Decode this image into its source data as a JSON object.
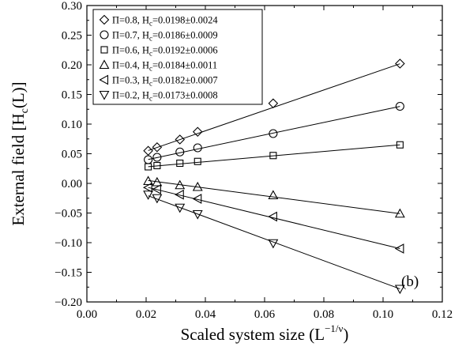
{
  "chart_data": {
    "type": "scatter",
    "xlabel": "Scaled system size (L",
    "xlabel_sup": "−1/ν",
    "xlabel_close": ")",
    "ylabel": "External field [H",
    "ylabel_sub": "c",
    "ylabel_close": "(L)]",
    "xlim": [
      0.0,
      0.12
    ],
    "ylim": [
      -0.2,
      0.3
    ],
    "xticks": [
      "0.00",
      "0.02",
      "0.04",
      "0.06",
      "0.08",
      "0.10",
      "0.12"
    ],
    "yticks": [
      "−0.20",
      "−0.15",
      "−0.10",
      "−0.05",
      "0.00",
      "0.05",
      "0.10",
      "0.15",
      "0.20",
      "0.25",
      "0.30"
    ],
    "x": [
      0.0207,
      0.0237,
      0.0314,
      0.0374,
      0.0629,
      0.1057
    ],
    "annotation": "(b)",
    "legend_position": "top-left",
    "series": [
      {
        "marker": "diamond",
        "legend_pre": "Π=0.8, H",
        "legend_sub": "c",
        "legend_post": "=0.0198±0.0024",
        "values": [
          0.055,
          0.061,
          0.074,
          0.087,
          0.135,
          0.202
        ],
        "fit": [
          0.0198,
          1.7217
        ]
      },
      {
        "marker": "circle",
        "legend_pre": "Π=0.7, H",
        "legend_sub": "c",
        "legend_post": "=0.0186±0.0009",
        "values": [
          0.04,
          0.044,
          0.053,
          0.06,
          0.084,
          0.13
        ],
        "fit": [
          0.0186,
          1.0527
        ]
      },
      {
        "marker": "square",
        "legend_pre": "Π=0.6, H",
        "legend_sub": "c",
        "legend_post": "=0.0192±0.0006",
        "values": [
          0.028,
          0.03,
          0.034,
          0.037,
          0.047,
          0.065
        ],
        "fit": [
          0.0192,
          0.4333
        ]
      },
      {
        "marker": "triangle-up",
        "legend_pre": "Π=0.4, H",
        "legend_sub": "c",
        "legend_post": "=0.0184±0.0011",
        "values": [
          0.004,
          0.002,
          -0.003,
          -0.006,
          -0.02,
          -0.051
        ],
        "fit": [
          0.0184,
          -0.6565
        ]
      },
      {
        "marker": "triangle-left",
        "legend_pre": "Π=0.3, H",
        "legend_sub": "c",
        "legend_post": "=0.0182±0.0007",
        "values": [
          -0.007,
          -0.01,
          -0.019,
          -0.026,
          -0.056,
          -0.11
        ],
        "fit": [
          0.0182,
          -1.2128
        ]
      },
      {
        "marker": "triangle-down",
        "legend_pre": "Π=0.2, H",
        "legend_sub": "c",
        "legend_post": "=0.0173±0.0008",
        "values": [
          -0.019,
          -0.025,
          -0.041,
          -0.052,
          -0.101,
          -0.178
        ],
        "fit": [
          0.0173,
          -1.847
        ]
      }
    ]
  }
}
